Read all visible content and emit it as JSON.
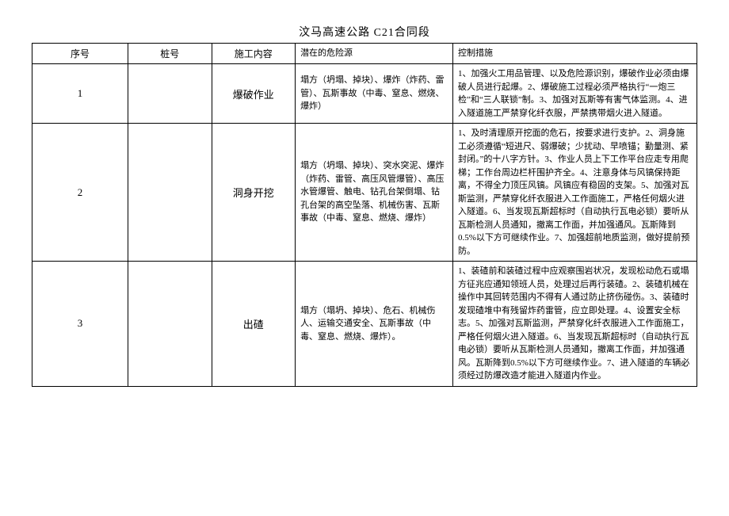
{
  "title": "汶马高速公路 C21合同段",
  "columns": {
    "seq": "序号",
    "pile": "桩号",
    "work": "施工内容",
    "hazard": "潜在的危险源",
    "control": "控制措施"
  },
  "rows": [
    {
      "seq": "1",
      "pile": "",
      "work": "爆破作业",
      "hazard": "塌方（坍塌、掉块）、爆炸（炸药、雷管）、瓦斯事故（中毒、窒息、燃烧、爆炸）",
      "control": "1、加强火工用品管理、以及危险源识别，爆破作业必须由爆破人员进行起爆。2、爆破施工过程必须严格执行“一炮三检”和“三人联锁”制。3、加强对瓦斯等有害气体监测。4、进入隧道施工严禁穿化纤衣服，严禁携带烟火进入隧道。"
    },
    {
      "seq": "2",
      "pile": "",
      "work": "洞身开挖",
      "hazard": "塌方（坍塌、掉块）、突水突泥、爆炸（炸药、雷管、高压风管爆管）、高压水管爆管、触电、钻孔台架倒塌、钻孔台架的高空坠落、机械伤害、瓦斯事故（中毒、窒息、燃烧、爆炸）",
      "control": "1、及时清理原开挖面的危石，按要求进行支护。2、洞身施工必须遵循“短进尺、弱爆破；少扰动、早喷锚；勤量测、紧封闭。”的十八字方针。3、作业人员上下工作平台应走专用爬梯；工作台周边栏杆围护齐全。4、注意身体与风镐保持距离，不得全力顶压风镐。风镐应有稳固的支架。5、加强对瓦斯监测，严禁穿化纤衣服进入工作面施工，严格任何烟火进入隧道。6、当发现瓦斯超标时（自动执行瓦电必锁）要听从瓦斯检测人员通知，撤离工作面，并加强通风。瓦斯降到0.5%以下方可继续作业。7、加强超前地质监测，做好提前预防。"
    },
    {
      "seq": "3",
      "pile": "",
      "work": "出碴",
      "hazard": "塌方（塌坍、掉块）、危石、机械伤人、运输交通安全、瓦斯事故（中毒、窒息、燃烧、爆炸）。",
      "control": "1、装碴前和装碴过程中应观察围岩状况，发现松动危石或塌方征兆应通知领班人员，处理过后再行装碴。2、装碴机械在操作中其回转范围内不得有人通过防止挤伤碰伤。3、装碴时发现碴堆中有残留炸药雷管，应立即处理。4、设置安全标志。5、加强对瓦斯监测，严禁穿化纤衣服进入工作面施工，严格任何烟火进入隧道。6、当发现瓦斯超标时（自动执行瓦电必锁）要听从瓦斯检测人员通知，撤离工作面，并加强通风。瓦斯降到0.5%以下方可继续作业。7、进入隧道的车辆必须经过防爆改造才能进入隧道内作业。"
    }
  ]
}
